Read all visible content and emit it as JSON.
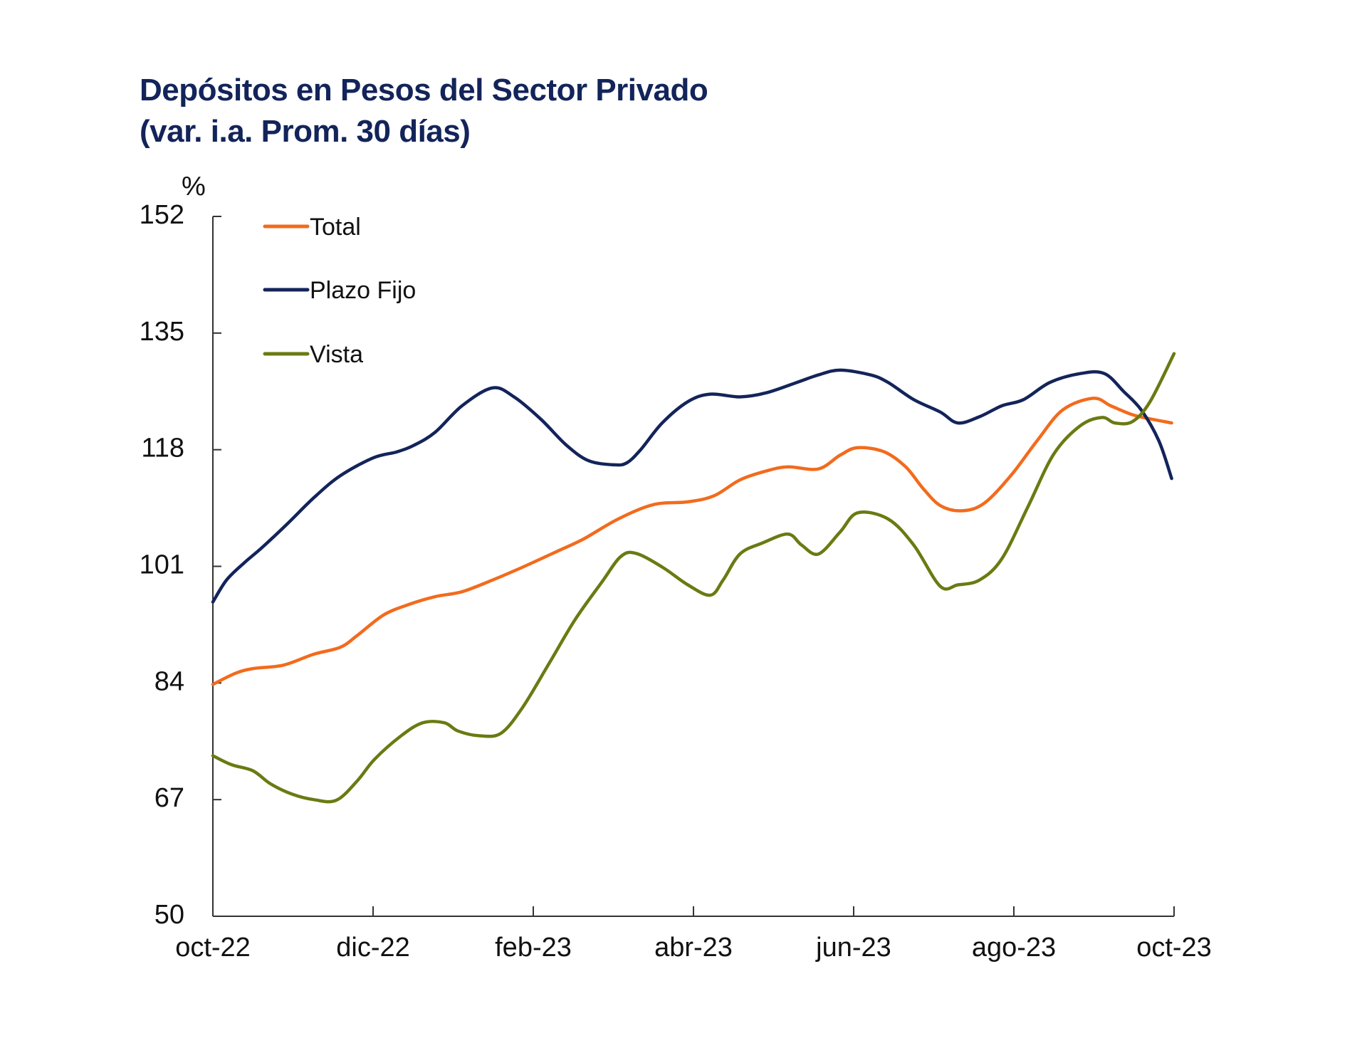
{
  "chart_data": {
    "type": "line",
    "title": "Depósitos en Pesos del Sector Privado",
    "subtitle": "(var. i.a. Prom. 30 días)",
    "ylabel": "%",
    "xlabel": "",
    "ylim": [
      50,
      152
    ],
    "yticks": [
      50,
      67,
      84,
      101,
      118,
      135,
      152
    ],
    "xlim": [
      0,
      12
    ],
    "xticks": [
      {
        "pos": 0,
        "label": "oct-22"
      },
      {
        "pos": 2,
        "label": "dic-22"
      },
      {
        "pos": 4,
        "label": "feb-23"
      },
      {
        "pos": 6,
        "label": "abr-23"
      },
      {
        "pos": 8,
        "label": "jun-23"
      },
      {
        "pos": 10,
        "label": "ago-23"
      },
      {
        "pos": 12,
        "label": "oct-23"
      }
    ],
    "grid": false,
    "legend_position": "top-left",
    "series": [
      {
        "name": "Total",
        "color": "#f26b1d",
        "x": [
          0,
          0.28,
          0.5,
          0.88,
          1.26,
          1.59,
          1.8,
          2.13,
          2.46,
          2.78,
          3.11,
          3.49,
          3.87,
          4.3,
          4.63,
          5.06,
          5.5,
          5.93,
          6.26,
          6.58,
          6.91,
          7.18,
          7.56,
          7.83,
          8.05,
          8.38,
          8.65,
          8.87,
          9.09,
          9.36,
          9.63,
          9.96,
          10.29,
          10.61,
          10.99,
          11.21,
          11.48,
          11.7,
          11.97
        ],
        "values": [
          83.8,
          85.4,
          86.1,
          86.6,
          88.2,
          89.2,
          90.9,
          93.9,
          95.5,
          96.6,
          97.3,
          99,
          100.9,
          103.2,
          105,
          107.9,
          110,
          110.4,
          111.3,
          113.6,
          114.9,
          115.5,
          115.2,
          117.2,
          118.3,
          117.7,
          115.5,
          112.3,
          109.8,
          109.1,
          110.2,
          114.2,
          119.3,
          123.8,
          125.5,
          124.4,
          123.1,
          122.5,
          121.9
        ]
      },
      {
        "name": "Plazo Fijo",
        "color": "#13245a",
        "x": [
          0,
          0.17,
          0.39,
          0.61,
          0.93,
          1.26,
          1.59,
          2,
          2.3,
          2.52,
          2.78,
          3.11,
          3.49,
          3.76,
          4.09,
          4.41,
          4.69,
          5.01,
          5.17,
          5.34,
          5.61,
          5.93,
          6.21,
          6.58,
          6.91,
          7.29,
          7.56,
          7.83,
          8.21,
          8.43,
          8.75,
          9.08,
          9.3,
          9.57,
          9.85,
          10.12,
          10.45,
          10.83,
          11.13,
          11.37,
          11.59,
          11.81,
          11.97
        ],
        "values": [
          95.8,
          99,
          101.5,
          103.7,
          107.2,
          111,
          114.2,
          116.8,
          117.7,
          118.7,
          120.6,
          124.4,
          127,
          125.7,
          122.5,
          118.7,
          116.4,
          115.8,
          116.1,
          118,
          121.9,
          125,
          126.1,
          125.7,
          126.3,
          127.8,
          128.9,
          129.6,
          128.9,
          127.8,
          125.3,
          123.5,
          121.9,
          122.8,
          124.4,
          125.3,
          127.8,
          129.1,
          129.1,
          126.5,
          123.8,
          119.3,
          113.8
        ]
      },
      {
        "name": "Vista",
        "color": "#6b7a12",
        "x": [
          0,
          0.23,
          0.5,
          0.72,
          0.99,
          1.26,
          1.54,
          1.8,
          2.02,
          2.35,
          2.62,
          2.89,
          3.06,
          3.33,
          3.6,
          3.87,
          4.2,
          4.52,
          4.85,
          5.09,
          5.28,
          5.61,
          5.93,
          6.21,
          6.37,
          6.58,
          6.86,
          7.18,
          7.35,
          7.56,
          7.83,
          8.05,
          8.43,
          8.75,
          9.08,
          9.3,
          9.57,
          9.85,
          10.18,
          10.5,
          10.83,
          11.1,
          11.26,
          11.48,
          11.7,
          12
        ],
        "values": [
          73.4,
          72.1,
          71.2,
          69.3,
          67.8,
          67,
          66.9,
          69.7,
          72.9,
          76.3,
          78.2,
          78.2,
          77,
          76.3,
          76.7,
          80.5,
          86.9,
          93.2,
          98.6,
          102.4,
          102.9,
          100.9,
          98.3,
          96.8,
          99,
          102.8,
          104.4,
          105.7,
          104.1,
          102.8,
          106,
          108.8,
          107.9,
          104.1,
          98.1,
          98.3,
          99,
          102.1,
          109.8,
          117.4,
          121.5,
          122.7,
          121.9,
          122.1,
          125,
          132
        ]
      }
    ]
  }
}
